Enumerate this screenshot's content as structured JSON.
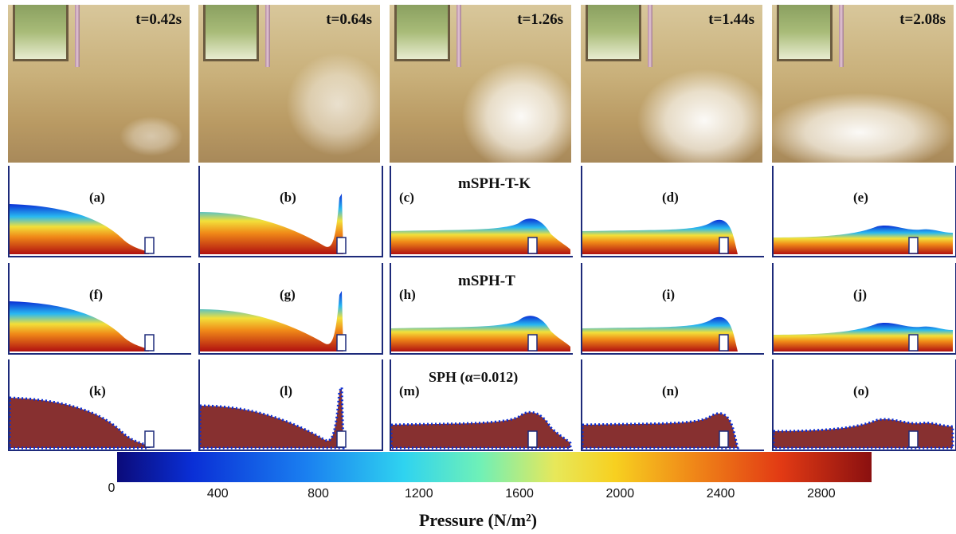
{
  "photos": [
    {
      "id": "t1",
      "time": "t=0.42s"
    },
    {
      "id": "t2",
      "time": "t=0.64s"
    },
    {
      "id": "t3",
      "time": "t=1.26s"
    },
    {
      "id": "t4",
      "time": "t=1.44s"
    },
    {
      "id": "t5",
      "time": "t=2.08s"
    }
  ],
  "rows": [
    {
      "method": "mSPH-T-K",
      "labels": [
        "(a)",
        "(b)",
        "(c)",
        "(d)",
        "(e)"
      ]
    },
    {
      "method": "mSPH-T",
      "labels": [
        "(f)",
        "(g)",
        "(h)",
        "(i)",
        "(j)"
      ]
    },
    {
      "method": "SPH (α=0.012)",
      "labels": [
        "(k)",
        "(l)",
        "(m)",
        "(n)",
        "(o)"
      ]
    }
  ],
  "colorbar": {
    "title": "Pressure (N/m²)",
    "ticks": [
      "0",
      "400",
      "800",
      "1200",
      "1600",
      "2000",
      "2400",
      "2800"
    ],
    "range": [
      0,
      3000
    ]
  }
}
